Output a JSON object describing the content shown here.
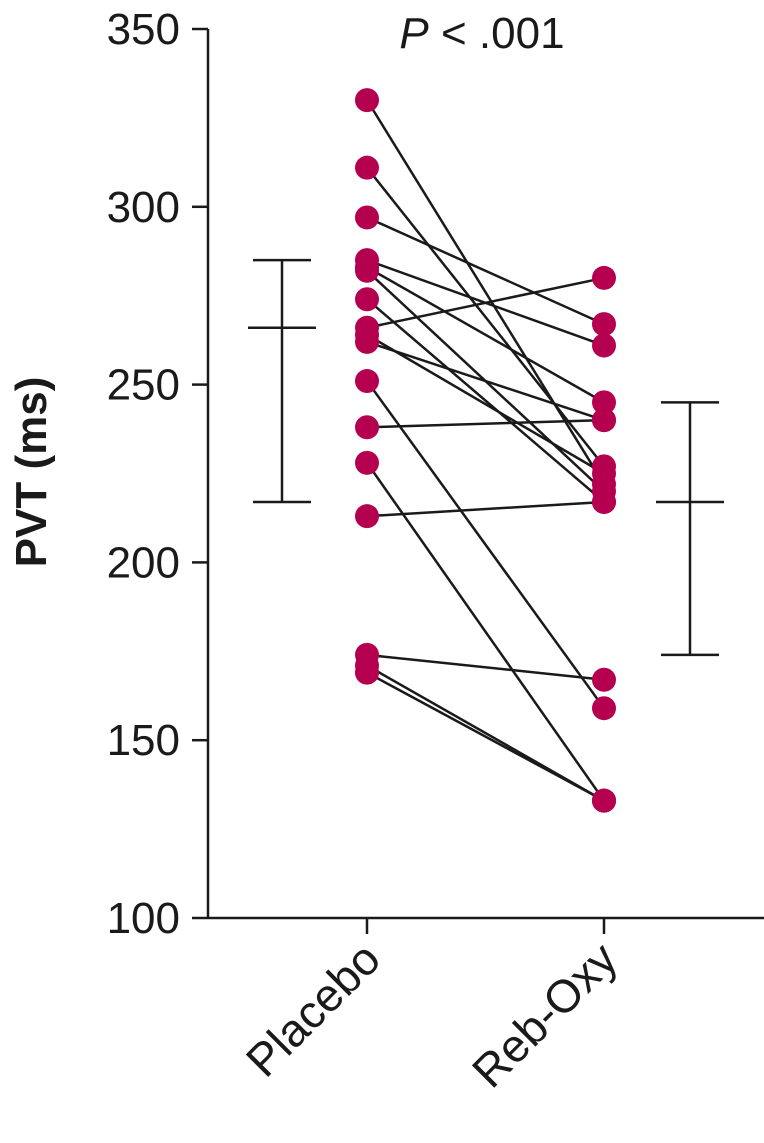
{
  "chart_data": {
    "type": "scatter",
    "subtype": "paired-dot-plot",
    "ylabel": "PVT (ms)",
    "ylim": [
      100,
      350
    ],
    "yticks": [
      100,
      150,
      200,
      250,
      300,
      350
    ],
    "categories": [
      "Placebo",
      "Reb-Oxy"
    ],
    "annotation_italic": "P",
    "annotation_rest": " < .001",
    "point_color": "#b5004f",
    "pairs": [
      [
        330,
        222
      ],
      [
        311,
        227
      ],
      [
        297,
        267
      ],
      [
        285,
        261
      ],
      [
        283,
        245
      ],
      [
        282,
        220
      ],
      [
        274,
        217
      ],
      [
        266,
        280
      ],
      [
        264,
        225
      ],
      [
        262,
        240
      ],
      [
        251,
        159
      ],
      [
        238,
        240
      ],
      [
        228,
        133
      ],
      [
        213,
        217
      ],
      [
        174,
        167
      ],
      [
        171,
        133
      ],
      [
        169,
        133
      ]
    ],
    "summary": [
      {
        "category": "Placebo",
        "mean": 266,
        "upper": 285,
        "lower": 217
      },
      {
        "category": "Reb-Oxy",
        "mean": 217,
        "upper": 245,
        "lower": 174
      }
    ]
  }
}
